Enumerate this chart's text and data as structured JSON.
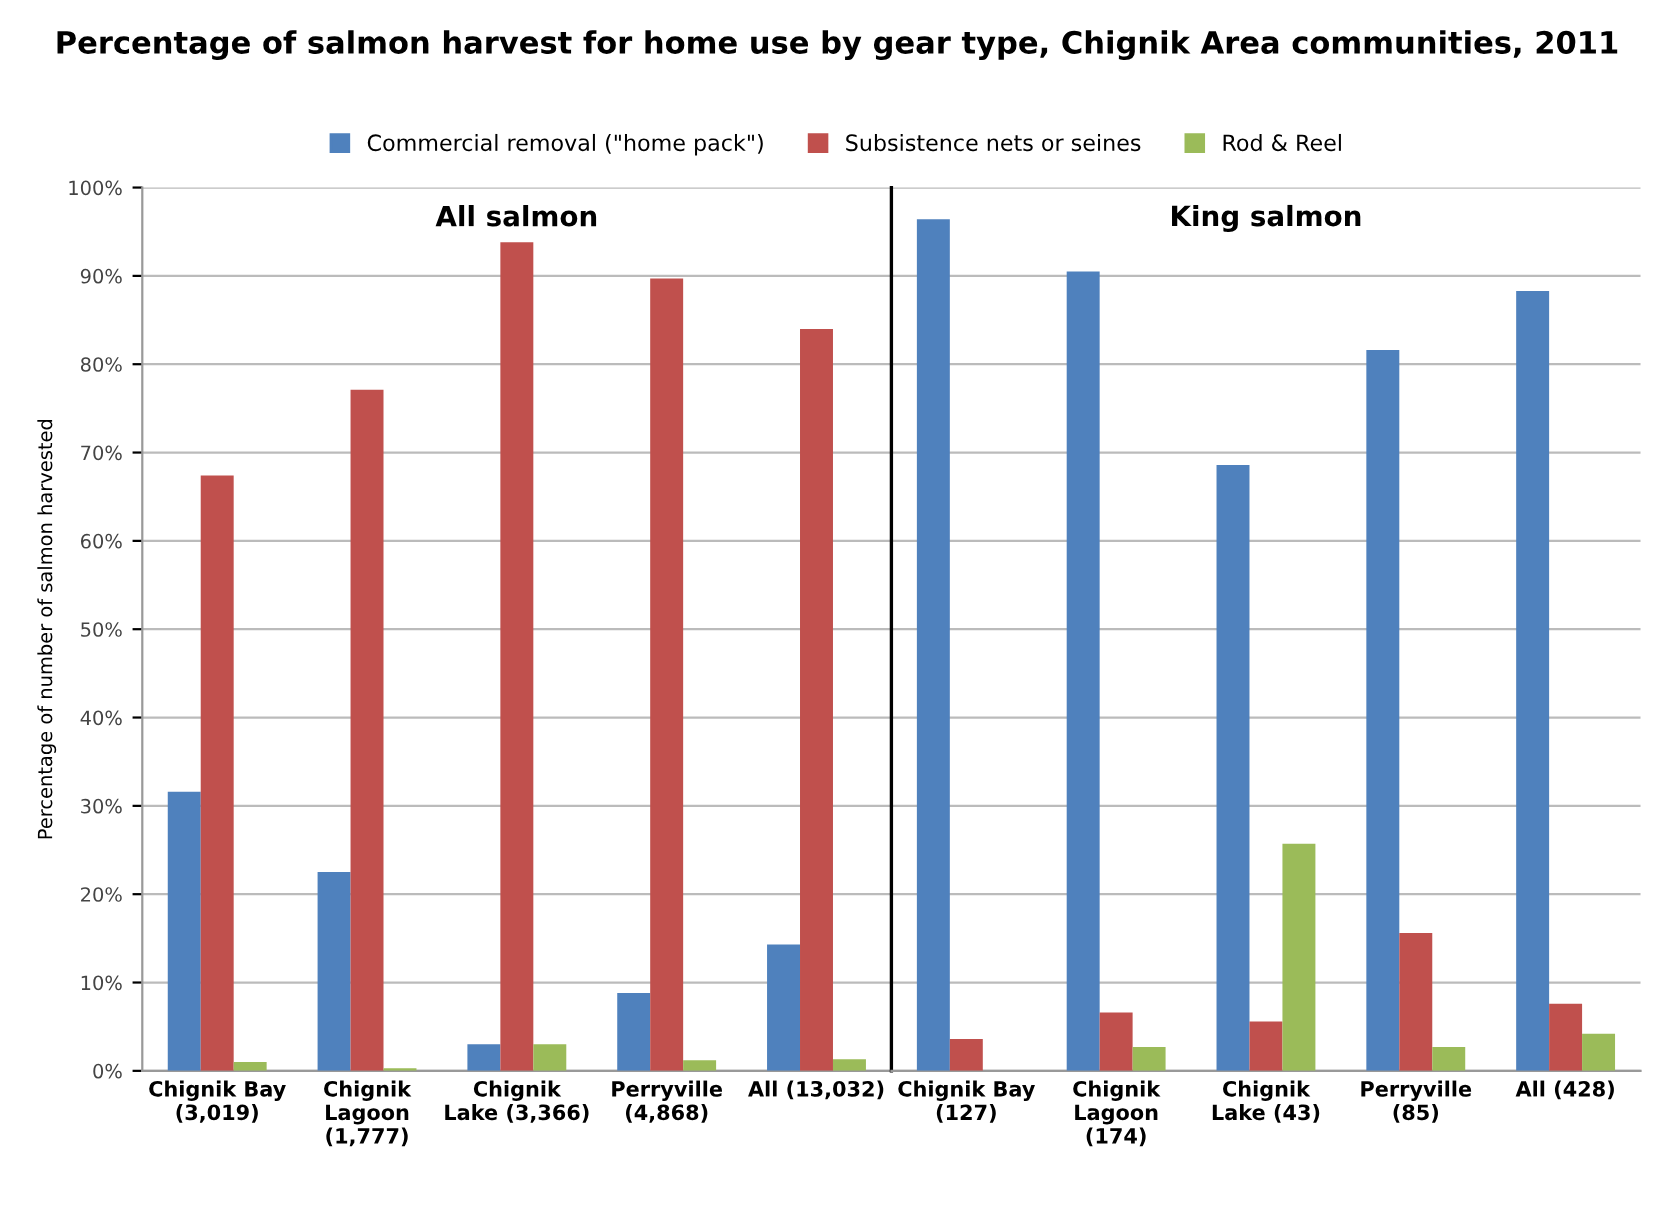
{
  "chart_data": [
    {
      "type": "bar",
      "title": "Percentage of salmon harvest for home use by gear type, Chignik Area communities, 2011",
      "ylabel": "Percentage of number of salmon harvested",
      "categories": [
        "Chignik Bay\n(3,019)",
        "Chignik\nLagoon\n(1,777)",
        "Chignik\nLake (3,366)",
        "Perryville\n(4,868)",
        "All (13,032)"
      ],
      "series": [
        {
          "name": "Commercial removal (\"home pack\")",
          "color": "#4f81bd",
          "values": [
            31.6,
            22.5,
            3.0,
            8.8,
            14.3
          ]
        },
        {
          "name": "Subsistence nets or seines",
          "color": "#c0504d",
          "values": [
            67.4,
            77.1,
            93.8,
            89.7,
            84.0
          ]
        },
        {
          "name": "Rod & Reel",
          "color": "#9bbb59",
          "values": [
            1.0,
            0.3,
            3.0,
            1.2,
            1.3
          ]
        }
      ],
      "ylim": [
        0,
        100
      ],
      "yticks": [
        {
          "value": 0,
          "label": "0%"
        },
        {
          "value": 10,
          "label": "10%"
        },
        {
          "value": 20,
          "label": "20%"
        },
        {
          "value": 30,
          "label": "30%"
        },
        {
          "value": 40,
          "label": "40%"
        },
        {
          "value": 50,
          "label": "50%"
        },
        {
          "value": 60,
          "label": "60%"
        },
        {
          "value": 70,
          "label": "70%"
        },
        {
          "value": 80,
          "label": "80%"
        },
        {
          "value": 90,
          "label": "90%"
        },
        {
          "value": 100,
          "label": "100%"
        }
      ],
      "annotations": [
        "All salmon"
      ],
      "grid": "y",
      "legend": "top"
    },
    {
      "type": "bar",
      "categories": [
        "Chignik Bay\n(127)",
        "Chignik\nLagoon\n(174)",
        "Chignik\nLake (43)",
        "Perryville\n(85)",
        "All (428)"
      ],
      "series": [
        {
          "color": "#4f81bd",
          "values": [
            96.4,
            90.5,
            68.6,
            81.6,
            88.3
          ]
        },
        {
          "color": "#c0504d",
          "values": [
            3.6,
            6.6,
            5.6,
            15.6,
            7.6
          ]
        },
        {
          "color": "#9bbb59",
          "values": [
            0,
            2.7,
            25.7,
            2.7,
            4.2
          ]
        }
      ],
      "ylim": [
        0,
        100
      ],
      "yticks": [
        {
          "value": 0,
          "label": null
        },
        {
          "value": 10,
          "label": null
        },
        {
          "value": 20,
          "label": null
        },
        {
          "value": 30,
          "label": null
        },
        {
          "value": 40,
          "label": null
        },
        {
          "value": 50,
          "label": null
        },
        {
          "value": 60,
          "label": null
        },
        {
          "value": 70,
          "label": null
        },
        {
          "value": 80,
          "label": null
        },
        {
          "value": 90,
          "label": null
        },
        {
          "value": 100,
          "label": null
        }
      ],
      "tick_labels": "x",
      "annotations": [
        "King salmon"
      ],
      "grid": "y"
    }
  ]
}
